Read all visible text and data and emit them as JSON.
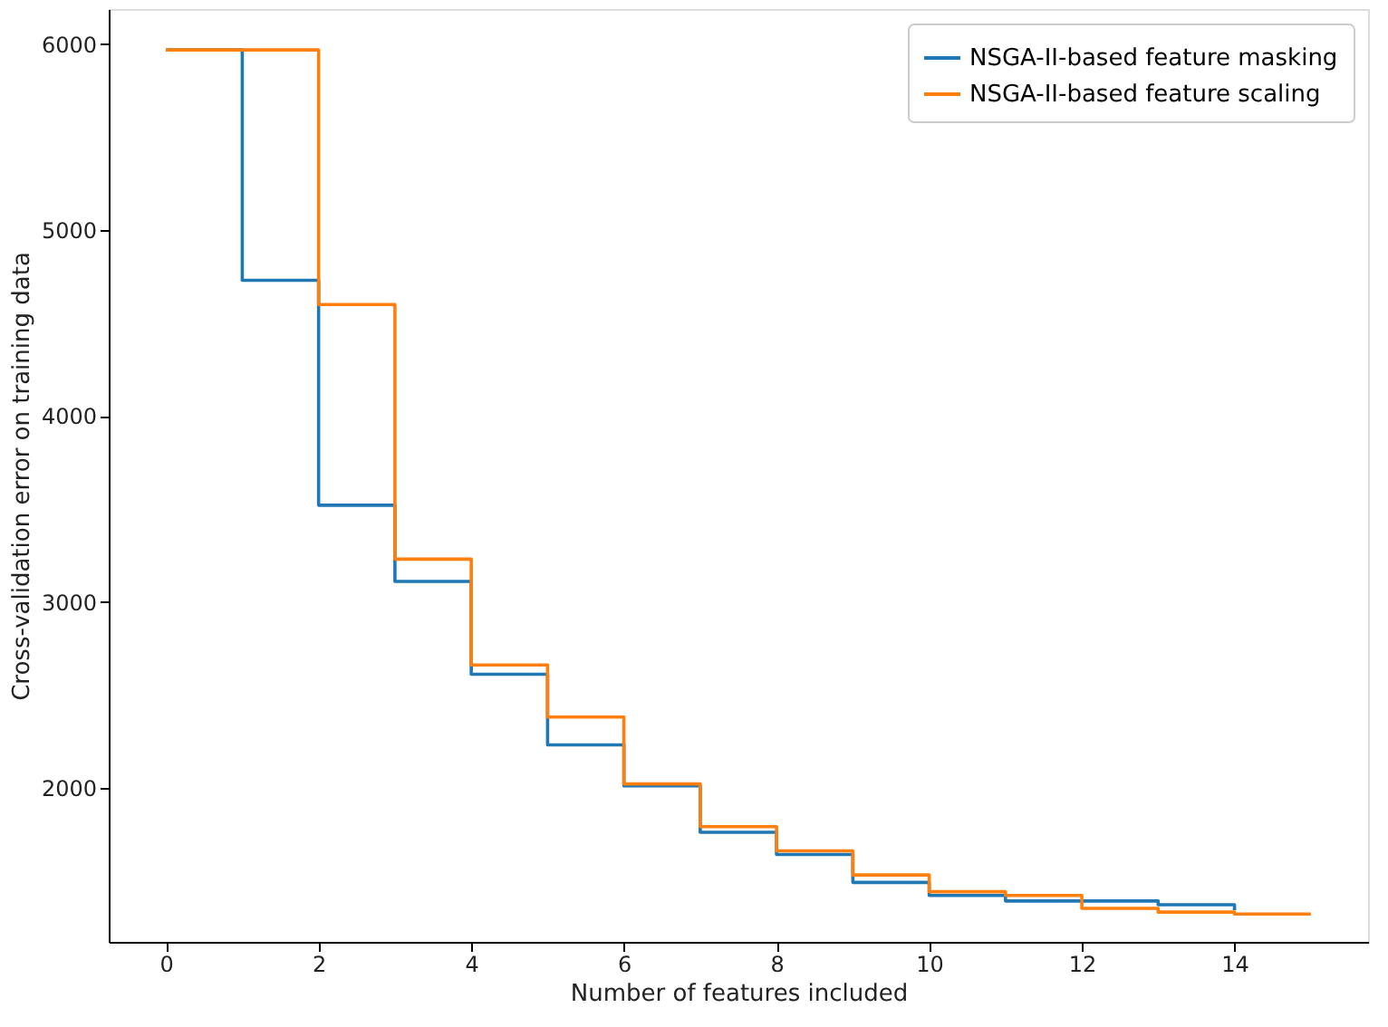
{
  "chart_data": {
    "type": "step",
    "xlabel": "Number of features included",
    "ylabel": "Cross-validation error on training data",
    "xlim": [
      -0.75,
      15.75
    ],
    "xticks": [
      0,
      2,
      4,
      6,
      8,
      10,
      12,
      14
    ],
    "ylim": [
      1170,
      6190
    ],
    "yticks": [
      2000,
      3000,
      4000,
      5000,
      6000
    ],
    "grid": false,
    "legend": "top right",
    "line_style": "solid",
    "marker": "none",
    "series": [
      {
        "name": "NSGA-II-based feature masking",
        "color": "#1f77b4",
        "x": [
          0,
          1,
          2,
          3,
          4,
          5,
          6,
          7,
          8,
          9,
          10,
          11,
          12,
          13,
          14
        ],
        "values": [
          5970,
          4730,
          3520,
          3110,
          2610,
          2230,
          2010,
          1760,
          1640,
          1490,
          1420,
          1390,
          1390,
          1370,
          1340
        ]
      },
      {
        "name": "NSGA-II-based feature scaling",
        "color": "#ff7f0e",
        "x": [
          0,
          1,
          2,
          3,
          4,
          5,
          6,
          7,
          8,
          9,
          10,
          11,
          12,
          13,
          14,
          15
        ],
        "values": [
          5970,
          5970,
          4600,
          3230,
          2660,
          2380,
          2020,
          1790,
          1660,
          1530,
          1440,
          1420,
          1350,
          1330,
          1320,
          1320
        ]
      }
    ]
  }
}
